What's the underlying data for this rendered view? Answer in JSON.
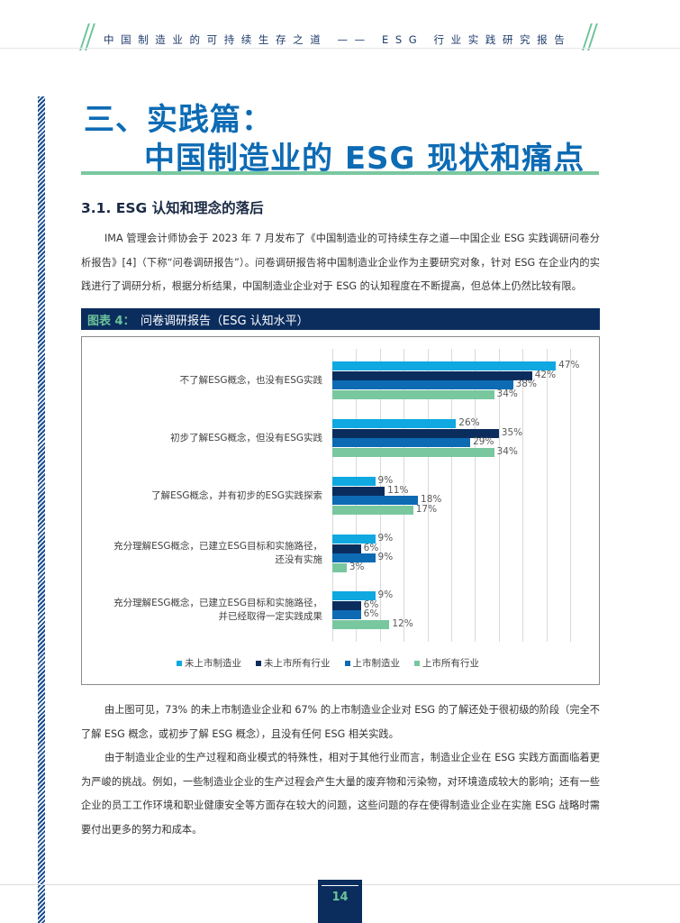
{
  "header": {
    "running_title": "中国制造业的可持续生存之道 —— ESG 行业实践研究报告"
  },
  "chapter": {
    "title_line1": "三、实践篇：",
    "title_line2": "中国制造业的 ESG 现状和痛点"
  },
  "section": {
    "heading": "3.1. ESG 认知和理念的落后"
  },
  "paragraphs": {
    "p1": "IMA 管理会计师协会于 2023 年 7 月发布了《中国制造业的可持续生存之道—中国企业 ESG 实践调研问卷分析报告》[4]（下称“问卷调研报告”）。问卷调研报告将中国制造业企业作为主要研究对象，针对 ESG 在企业内的实践进行了调研分析，根据分析结果，中国制造业企业对于 ESG 的认知程度在不断提高，但总体上仍然比较有限。",
    "p2": "由上图可见，73% 的未上市制造业企业和 67% 的上市制造业企业对 ESG 的了解还处于很初级的阶段（完全不了解 ESG 概念，或初步了解 ESG 概念），且没有任何 ESG 相关实践。",
    "p3": "由于制造业企业的生产过程和商业模式的特殊性，相对于其他行业而言，制造业企业在 ESG 实践方面面临着更为严峻的挑战。例如，一些制造业企业的生产过程会产生大量的废弃物和污染物，对环境造成较大的影响；还有一些企业的员工工作环境和职业健康安全等方面存在较大的问题，这些问题的存在使得制造业企业在实施 ESG 战略时需要付出更多的努力和成本。"
  },
  "figure": {
    "label": "图表 4：",
    "title": "问卷调研报告（ESG 认知水平）"
  },
  "chart_data": {
    "type": "bar",
    "orientation": "horizontal",
    "title": "问卷调研报告（ESG 认知水平）",
    "xlabel": "",
    "ylabel": "",
    "xlim": [
      0,
      50
    ],
    "grid": true,
    "grid_step": 5,
    "legend_position": "bottom",
    "categories": [
      "不了解ESG概念，也没有ESG实践",
      "初步了解ESG概念，但没有ESG实践",
      "了解ESG概念，并有初步的ESG实践探索",
      "充分理解ESG概念，已建立ESG目标和实施路径，还没有实施",
      "充分理解ESG概念，已建立ESG目标和实施路径，并已经取得一定实践成果"
    ],
    "category_lines": [
      [
        "不了解ESG概念，也没有ESG实践"
      ],
      [
        "初步了解ESG概念，但没有ESG实践"
      ],
      [
        "了解ESG概念，并有初步的ESG实践探索"
      ],
      [
        "充分理解ESG概念，已建立ESG目标和实施路径，",
        "还没有实施"
      ],
      [
        "充分理解ESG概念，已建立ESG目标和实施路径，",
        "并已经取得一定实践成果"
      ]
    ],
    "series": [
      {
        "name": "未上市制造业",
        "color": "#0fa8e0",
        "values": [
          47,
          26,
          9,
          9,
          9
        ]
      },
      {
        "name": "未上市所有行业",
        "color": "#0b2d5e",
        "values": [
          42,
          35,
          11,
          6,
          6
        ]
      },
      {
        "name": "上市制造业",
        "color": "#0d6bb4",
        "values": [
          38,
          29,
          18,
          9,
          6
        ]
      },
      {
        "name": "上市所有行业",
        "color": "#78c79f",
        "values": [
          34,
          34,
          17,
          3,
          12
        ]
      }
    ],
    "value_suffix": "%"
  },
  "footer": {
    "page_number": "14"
  }
}
